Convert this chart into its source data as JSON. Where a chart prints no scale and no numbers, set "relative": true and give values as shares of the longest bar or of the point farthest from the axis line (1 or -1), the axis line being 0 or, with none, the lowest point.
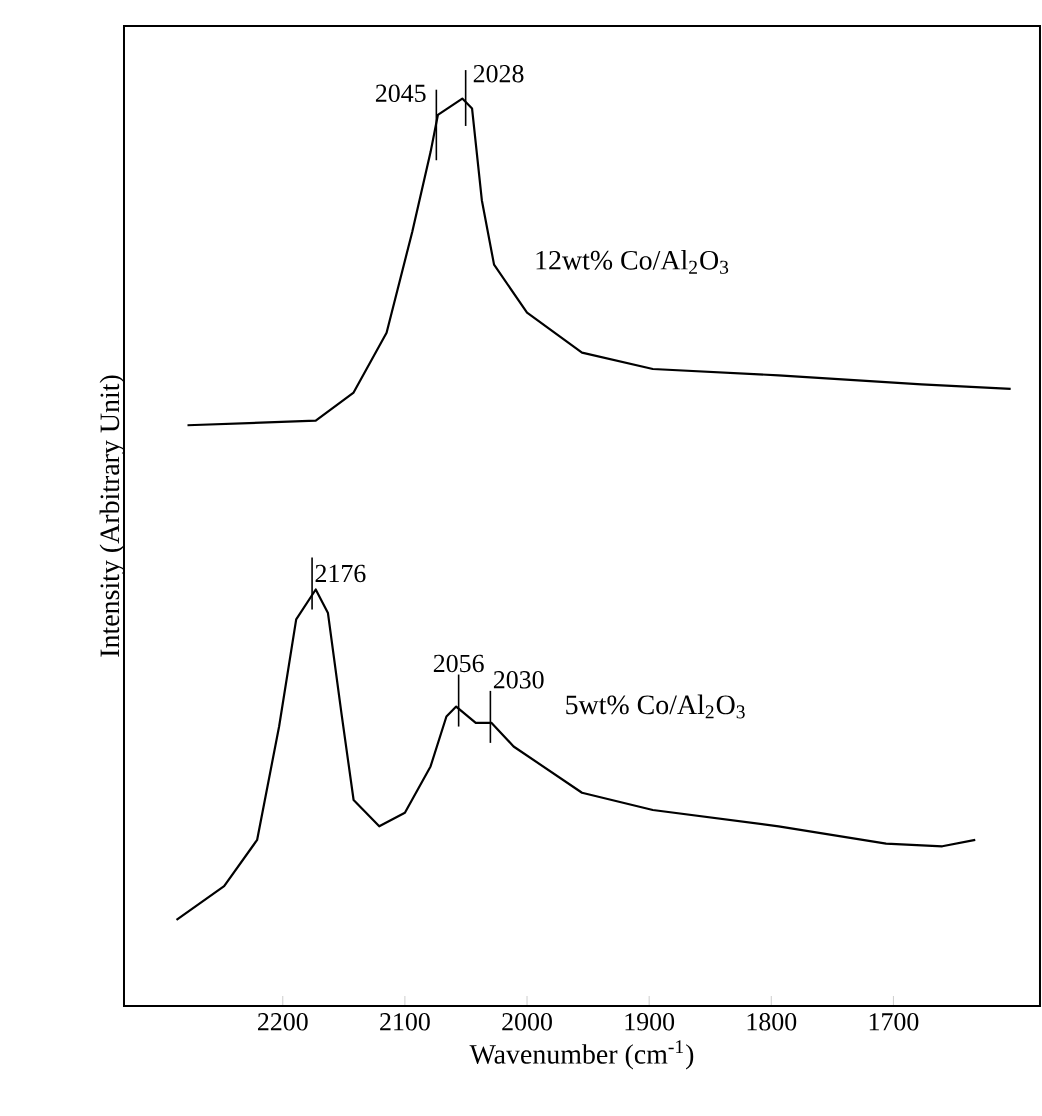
{
  "chart_data": {
    "type": "line",
    "relative": true,
    "xlabel": "Wavenumber (cm$^{-1}$)",
    "ylabel": "Intensity (Arbitrary Unit)",
    "xlim": [
      2330,
      1580
    ],
    "xticks": [
      2200,
      2100,
      2000,
      1900,
      1800,
      1700
    ],
    "series": [
      {
        "name": "12wt% Co/Al$_{2}$O$_{3}$",
        "color": "#000000",
        "x": [
          2278,
          2173,
          2142,
          2115,
          2094,
          2079,
          2073,
          2053,
          2045,
          2037,
          2027,
          2000,
          1955,
          1897,
          1794,
          1677,
          1604
        ],
        "values": [
          0.64,
          0.645,
          0.676,
          0.742,
          0.853,
          0.941,
          0.982,
          1.0,
          0.989,
          0.888,
          0.817,
          0.764,
          0.72,
          0.702,
          0.695,
          0.685,
          0.68
        ]
      },
      {
        "name": "5wt% Co/Al$_{2}$O$_{3}$",
        "color": "#000000",
        "x": [
          2287,
          2248,
          2221,
          2203,
          2189,
          2173,
          2163,
          2152,
          2142,
          2121,
          2100,
          2079,
          2066,
          2058,
          2042,
          2029,
          2011,
          1955,
          1897,
          1794,
          1706,
          1660,
          1633
        ],
        "values": [
          0.095,
          0.132,
          0.183,
          0.308,
          0.426,
          0.459,
          0.433,
          0.323,
          0.227,
          0.198,
          0.213,
          0.264,
          0.319,
          0.33,
          0.312,
          0.312,
          0.286,
          0.235,
          0.216,
          0.198,
          0.179,
          0.176,
          0.183
        ]
      }
    ],
    "annotations": [
      "2045",
      "2028",
      {
        "text": "2176",
        "x": 2176,
        "y": 0.459
      },
      {
        "text": "2056",
        "x": 2056,
        "y": 0.33
      },
      {
        "text": "2030",
        "x": 2030,
        "y": 0.312
      }
    ]
  }
}
